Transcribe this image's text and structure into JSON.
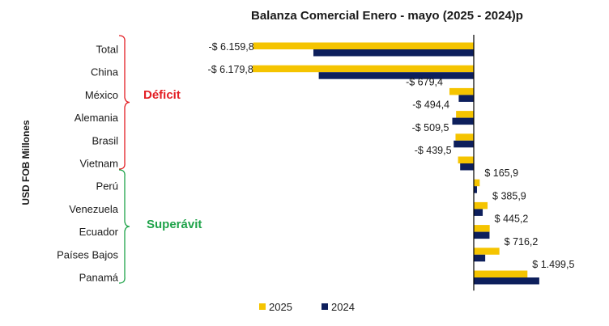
{
  "chart_data": {
    "type": "bar",
    "orientation": "horizontal",
    "title": "Balanza Comercial  Enero - mayo (2025 - 2024)p",
    "ylabel": "USD FOB Millones",
    "categories": [
      "Total",
      "China",
      "México",
      "Alemania",
      "Brasil",
      "Vietnam",
      "Perú",
      "Venezuela",
      "Ecuador",
      "Países Bajos",
      "Panamá"
    ],
    "series": [
      {
        "name": "2025",
        "color": "#f5c400",
        "values": [
          -6159.8,
          -6179.8,
          -679.4,
          -494.4,
          -509.5,
          -439.5,
          165.9,
          385.9,
          445.2,
          716.2,
          1499.5
        ],
        "labels": [
          "-$ 6.159,8",
          "-$ 6.179,8",
          "-$ 679,4",
          "-$ 494,4",
          "-$ 509,5",
          "-$ 439,5",
          "$ 165,9",
          "$ 385,9",
          "$ 445,2",
          "$ 716,2",
          "$ 1.499,5"
        ]
      },
      {
        "name": "2024",
        "color": "#0d1f5c",
        "values": [
          -4480,
          -4330,
          -420,
          -600,
          -560,
          -380,
          90,
          250,
          440,
          320,
          1830
        ]
      }
    ],
    "annotations": [
      {
        "text": "Déficit",
        "color": "#e31e24",
        "range": [
          "Total",
          "Vietnam"
        ]
      },
      {
        "text": "Superávit",
        "color": "#1fa34a",
        "range": [
          "Perú",
          "Panamá"
        ]
      }
    ],
    "legend_position": "bottom",
    "grid": false
  }
}
